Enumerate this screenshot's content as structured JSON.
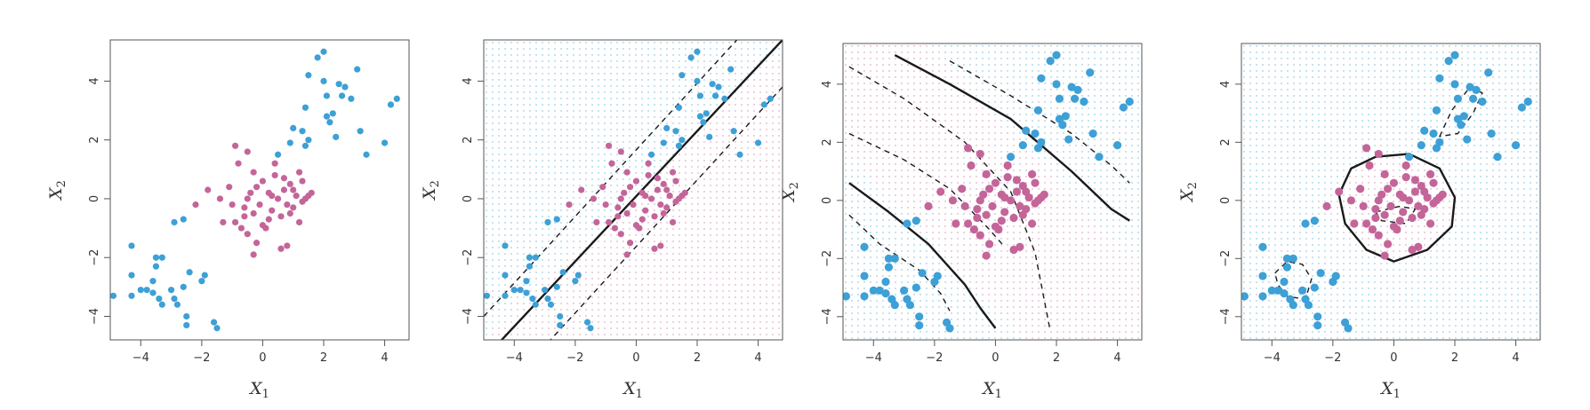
{
  "colors": {
    "class_blue": "#3da0d6",
    "class_pink": "#c4659a",
    "boundary": "#1a1a1a"
  },
  "chart_data": [
    {
      "type": "scatter",
      "xlabel": "X",
      "xlabel_sub": "1",
      "ylabel": "X",
      "ylabel_sub": "2",
      "xlim": [
        -5.0,
        4.8
      ],
      "ylim": [
        -4.8,
        5.4
      ],
      "xticks": [
        -4,
        -2,
        0,
        2,
        4
      ],
      "yticks": [
        -4,
        -2,
        0,
        2,
        4
      ],
      "background_grid": false,
      "boundaries": []
    },
    {
      "type": "scatter",
      "xlabel": "X",
      "xlabel_sub": "1",
      "ylabel": "X",
      "ylabel_sub": "2",
      "xlim": [
        -5.0,
        4.8
      ],
      "ylim": [
        -4.8,
        5.4
      ],
      "xticks": [
        -4,
        -2,
        0,
        2,
        4
      ],
      "yticks": [
        -4,
        -2,
        0,
        2,
        4
      ],
      "background_grid": true,
      "boundaries": [
        {
          "style": "solid",
          "points": [
            [
              -4.5,
              -4.9
            ],
            [
              4.8,
              5.4
            ]
          ]
        },
        {
          "style": "dashed",
          "points": [
            [
              -5.0,
              -4.0
            ],
            [
              3.3,
              5.4
            ]
          ]
        },
        {
          "style": "dashed",
          "points": [
            [
              -2.9,
              -4.9
            ],
            [
              4.8,
              3.8
            ]
          ]
        }
      ]
    },
    {
      "type": "scatter",
      "xlabel": "X",
      "xlabel_sub": "1",
      "ylabel": "X",
      "ylabel_sub": "2",
      "xlim": [
        -5.0,
        4.8
      ],
      "ylim": [
        -4.8,
        5.4
      ],
      "xticks": [
        -4,
        -2,
        0,
        2,
        4
      ],
      "yticks": [
        -4,
        -2,
        0,
        2,
        4
      ],
      "background_grid": true,
      "boundaries": [
        {
          "style": "solid",
          "points": [
            [
              -3.3,
              5.0
            ],
            [
              -1.5,
              4.0
            ],
            [
              0.5,
              2.8
            ],
            [
              2.5,
              1.0
            ],
            [
              3.8,
              -0.3
            ],
            [
              4.4,
              -0.7
            ]
          ]
        },
        {
          "style": "solid",
          "points": [
            [
              -4.8,
              0.6
            ],
            [
              -3.5,
              -0.4
            ],
            [
              -2.2,
              -1.5
            ],
            [
              -1.0,
              -2.9
            ],
            [
              -0.5,
              -3.7
            ],
            [
              0.0,
              -4.4
            ]
          ]
        },
        {
          "style": "dashed",
          "points": [
            [
              -1.5,
              4.8
            ],
            [
              0.5,
              3.6
            ],
            [
              2.5,
              2.3
            ],
            [
              3.8,
              1.2
            ],
            [
              4.4,
              0.6
            ]
          ]
        },
        {
          "style": "dashed",
          "points": [
            [
              -4.8,
              4.6
            ],
            [
              -3.0,
              3.5
            ],
            [
              -1.0,
              2.0
            ],
            [
              0.5,
              0.3
            ],
            [
              1.3,
              -1.8
            ],
            [
              1.8,
              -4.5
            ]
          ]
        },
        {
          "style": "dashed",
          "points": [
            [
              -4.8,
              2.3
            ],
            [
              -3.0,
              1.4
            ],
            [
              -1.5,
              0.4
            ],
            [
              -0.2,
              -1.0
            ],
            [
              0.3,
              -1.6
            ]
          ]
        },
        {
          "style": "dashed",
          "points": [
            [
              -4.8,
              -0.5
            ],
            [
              -3.8,
              -1.5
            ],
            [
              -2.5,
              -2.4
            ],
            [
              -1.8,
              -3.2
            ],
            [
              -1.5,
              -3.8
            ]
          ]
        }
      ]
    },
    {
      "type": "scatter",
      "xlabel": "X",
      "xlabel_sub": "1",
      "ylabel": "X",
      "ylabel_sub": "2",
      "xlim": [
        -5.0,
        4.8
      ],
      "ylim": [
        -4.8,
        5.4
      ],
      "xticks": [
        -4,
        -2,
        0,
        2,
        4
      ],
      "yticks": [
        -4,
        -2,
        0,
        2,
        4
      ],
      "background_grid": true,
      "boundaries": [
        {
          "style": "solid",
          "closed": true,
          "points": [
            [
              -0.6,
              1.5
            ],
            [
              0.5,
              1.6
            ],
            [
              1.5,
              1.1
            ],
            [
              2.0,
              0.1
            ],
            [
              1.9,
              -0.9
            ],
            [
              1.1,
              -1.7
            ],
            [
              0.0,
              -2.1
            ],
            [
              -0.9,
              -1.7
            ],
            [
              -1.6,
              -0.8
            ],
            [
              -1.8,
              0.2
            ],
            [
              -1.4,
              1.1
            ]
          ]
        },
        {
          "style": "dashed",
          "closed": true,
          "points": [
            [
              -0.6,
              -0.4
            ],
            [
              0.2,
              -0.2
            ],
            [
              0.7,
              -0.3
            ],
            [
              0.4,
              -0.8
            ],
            [
              -0.4,
              -0.7
            ]
          ]
        },
        {
          "style": "dashed",
          "closed": true,
          "points": [
            [
              1.5,
              2.2
            ],
            [
              1.9,
              3.1
            ],
            [
              2.5,
              3.9
            ],
            [
              2.9,
              3.7
            ],
            [
              2.6,
              3.0
            ],
            [
              2.1,
              2.3
            ]
          ]
        },
        {
          "style": "dashed",
          "closed": true,
          "points": [
            [
              -3.9,
              -2.5
            ],
            [
              -3.5,
              -2.1
            ],
            [
              -3.0,
              -2.2
            ],
            [
              -2.7,
              -2.7
            ],
            [
              -2.9,
              -3.4
            ],
            [
              -3.5,
              -3.3
            ],
            [
              -3.8,
              -2.9
            ]
          ]
        }
      ]
    }
  ],
  "points": {
    "blue": [
      [
        -4.9,
        -3.3
      ],
      [
        -4.3,
        -1.6
      ],
      [
        -4.3,
        -2.6
      ],
      [
        -4.3,
        -3.3
      ],
      [
        -4.0,
        -3.1
      ],
      [
        -3.8,
        -3.1
      ],
      [
        -3.6,
        -2.8
      ],
      [
        -3.6,
        -3.2
      ],
      [
        -3.5,
        -2.0
      ],
      [
        -3.5,
        -2.3
      ],
      [
        -3.4,
        -3.4
      ],
      [
        -3.3,
        -3.6
      ],
      [
        -3.3,
        -2.0
      ],
      [
        -3.0,
        -3.1
      ],
      [
        -2.9,
        -3.4
      ],
      [
        -2.8,
        -3.6
      ],
      [
        -2.6,
        -3.0
      ],
      [
        -2.5,
        -4.0
      ],
      [
        -2.5,
        -4.3
      ],
      [
        -2.4,
        -2.5
      ],
      [
        -2.0,
        -2.8
      ],
      [
        -1.9,
        -2.6
      ],
      [
        -1.6,
        -4.2
      ],
      [
        -1.5,
        -4.4
      ],
      [
        -2.9,
        -0.8
      ],
      [
        -2.6,
        -0.7
      ],
      [
        0.5,
        1.5
      ],
      [
        0.9,
        1.9
      ],
      [
        1.0,
        2.4
      ],
      [
        1.3,
        2.3
      ],
      [
        1.4,
        3.1
      ],
      [
        1.4,
        1.8
      ],
      [
        1.5,
        2.0
      ],
      [
        1.5,
        4.2
      ],
      [
        2.0,
        4.0
      ],
      [
        2.1,
        3.5
      ],
      [
        2.1,
        2.8
      ],
      [
        2.2,
        2.6
      ],
      [
        2.3,
        2.9
      ],
      [
        2.5,
        3.9
      ],
      [
        2.6,
        3.5
      ],
      [
        2.7,
        3.8
      ],
      [
        2.9,
        3.4
      ],
      [
        3.1,
        4.4
      ],
      [
        3.2,
        2.3
      ],
      [
        3.4,
        1.5
      ],
      [
        4.0,
        1.9
      ],
      [
        4.2,
        3.2
      ],
      [
        4.4,
        3.4
      ],
      [
        1.8,
        4.8
      ],
      [
        2.0,
        5.0
      ],
      [
        2.4,
        2.1
      ]
    ],
    "pink": [
      [
        -0.9,
        1.8
      ],
      [
        -0.5,
        1.6
      ],
      [
        -0.3,
        0.9
      ],
      [
        -0.9,
        -0.8
      ],
      [
        -0.7,
        -1.0
      ],
      [
        -0.6,
        -0.3
      ],
      [
        -0.5,
        -1.2
      ],
      [
        -0.4,
        0.2
      ],
      [
        -0.3,
        -0.5
      ],
      [
        -0.2,
        -1.5
      ],
      [
        -0.1,
        -0.2
      ],
      [
        0.0,
        0.6
      ],
      [
        0.1,
        -1.0
      ],
      [
        0.2,
        0.2
      ],
      [
        0.3,
        -0.4
      ],
      [
        0.4,
        0.8
      ],
      [
        0.5,
        0.0
      ],
      [
        0.6,
        -0.6
      ],
      [
        0.7,
        0.3
      ],
      [
        0.8,
        -0.2
      ],
      [
        0.9,
        0.5
      ],
      [
        1.0,
        -0.3
      ],
      [
        1.1,
        0.1
      ],
      [
        1.2,
        -0.8
      ],
      [
        1.3,
        -0.1
      ],
      [
        1.5,
        0.1
      ],
      [
        1.6,
        0.2
      ],
      [
        -1.3,
        -0.8
      ],
      [
        -1.4,
        0.0
      ],
      [
        -1.8,
        0.3
      ],
      [
        -2.2,
        -0.2
      ],
      [
        -1.1,
        0.4
      ],
      [
        0.6,
        -1.7
      ],
      [
        0.8,
        -1.6
      ],
      [
        -0.2,
        0.4
      ],
      [
        0.4,
        1.2
      ],
      [
        0.7,
        0.7
      ],
      [
        -0.6,
        -0.6
      ],
      [
        0.2,
        -0.7
      ],
      [
        1.0,
        0.3
      ],
      [
        1.2,
        0.9
      ],
      [
        -0.8,
        1.2
      ],
      [
        0.0,
        -0.9
      ],
      [
        -1.0,
        -0.2
      ],
      [
        0.3,
        0.1
      ],
      [
        1.4,
        0.0
      ],
      [
        -0.5,
        0.0
      ],
      [
        0.9,
        -0.5
      ],
      [
        1.3,
        0.6
      ],
      [
        -0.3,
        -1.9
      ]
    ]
  }
}
